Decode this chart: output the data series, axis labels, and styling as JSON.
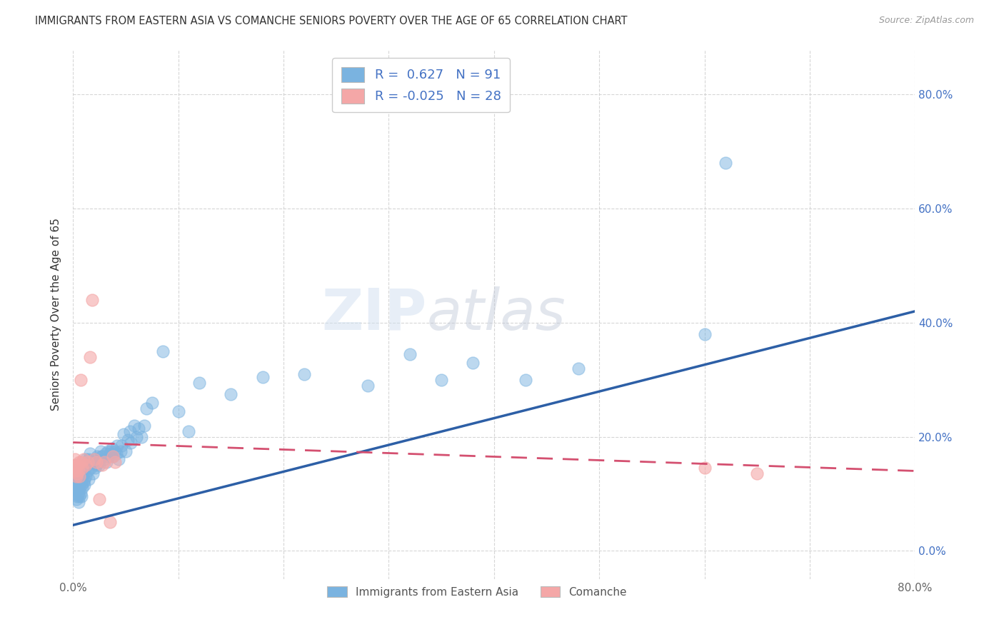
{
  "title": "IMMIGRANTS FROM EASTERN ASIA VS COMANCHE SENIORS POVERTY OVER THE AGE OF 65 CORRELATION CHART",
  "source": "Source: ZipAtlas.com",
  "ylabel": "Seniors Poverty Over the Age of 65",
  "xlim": [
    0.0,
    0.8
  ],
  "ylim": [
    -0.05,
    0.88
  ],
  "xtick_vals": [
    0.0,
    0.1,
    0.2,
    0.3,
    0.4,
    0.5,
    0.6,
    0.7,
    0.8
  ],
  "xtick_labels": [
    "0.0%",
    "",
    "",
    "",
    "",
    "",
    "",
    "",
    "80.0%"
  ],
  "ytick_vals": [
    0.0,
    0.2,
    0.4,
    0.6,
    0.8
  ],
  "ytick_labels": [
    "0.0%",
    "20.0%",
    "40.0%",
    "60.0%",
    "80.0%"
  ],
  "grid_color": "#cccccc",
  "background_color": "#ffffff",
  "blue_color": "#7ab3e0",
  "pink_color": "#f4a7a7",
  "blue_line_color": "#2d5fa6",
  "pink_line_color": "#d45070",
  "R_blue": 0.627,
  "N_blue": 91,
  "R_pink": -0.025,
  "N_pink": 28,
  "legend_label_blue": "Immigrants from Eastern Asia",
  "legend_label_pink": "Comanche",
  "watermark_zip": "ZIP",
  "watermark_atlas": "atlas",
  "blue_line_x": [
    0.0,
    0.8
  ],
  "blue_line_y": [
    0.045,
    0.42
  ],
  "pink_line_x": [
    0.0,
    0.8
  ],
  "pink_line_y": [
    0.19,
    0.14
  ],
  "blue_scatter_x": [
    0.001,
    0.001,
    0.002,
    0.002,
    0.002,
    0.003,
    0.003,
    0.003,
    0.004,
    0.004,
    0.004,
    0.005,
    0.005,
    0.005,
    0.005,
    0.006,
    0.006,
    0.006,
    0.007,
    0.007,
    0.007,
    0.008,
    0.008,
    0.008,
    0.009,
    0.009,
    0.01,
    0.01,
    0.011,
    0.011,
    0.012,
    0.012,
    0.013,
    0.014,
    0.015,
    0.015,
    0.016,
    0.017,
    0.018,
    0.019,
    0.02,
    0.021,
    0.022,
    0.023,
    0.024,
    0.025,
    0.026,
    0.027,
    0.028,
    0.03,
    0.031,
    0.032,
    0.033,
    0.034,
    0.035,
    0.036,
    0.037,
    0.038,
    0.04,
    0.041,
    0.042,
    0.043,
    0.045,
    0.046,
    0.048,
    0.05,
    0.052,
    0.054,
    0.055,
    0.058,
    0.06,
    0.062,
    0.065,
    0.068,
    0.07,
    0.075,
    0.085,
    0.1,
    0.11,
    0.12,
    0.15,
    0.18,
    0.22,
    0.28,
    0.32,
    0.35,
    0.38,
    0.43,
    0.48,
    0.6,
    0.62
  ],
  "blue_scatter_y": [
    0.12,
    0.1,
    0.13,
    0.11,
    0.14,
    0.105,
    0.125,
    0.09,
    0.115,
    0.13,
    0.095,
    0.12,
    0.1,
    0.115,
    0.085,
    0.125,
    0.11,
    0.095,
    0.12,
    0.13,
    0.1,
    0.115,
    0.125,
    0.095,
    0.13,
    0.11,
    0.12,
    0.14,
    0.115,
    0.125,
    0.16,
    0.13,
    0.15,
    0.14,
    0.16,
    0.125,
    0.17,
    0.145,
    0.155,
    0.135,
    0.16,
    0.145,
    0.15,
    0.165,
    0.155,
    0.15,
    0.175,
    0.165,
    0.165,
    0.16,
    0.17,
    0.155,
    0.175,
    0.165,
    0.17,
    0.175,
    0.18,
    0.165,
    0.175,
    0.17,
    0.185,
    0.16,
    0.175,
    0.185,
    0.205,
    0.175,
    0.195,
    0.21,
    0.19,
    0.22,
    0.2,
    0.215,
    0.2,
    0.22,
    0.25,
    0.26,
    0.35,
    0.245,
    0.21,
    0.295,
    0.275,
    0.305,
    0.31,
    0.29,
    0.345,
    0.3,
    0.33,
    0.3,
    0.32,
    0.38,
    0.68
  ],
  "pink_scatter_x": [
    0.001,
    0.002,
    0.002,
    0.003,
    0.003,
    0.004,
    0.004,
    0.005,
    0.006,
    0.006,
    0.007,
    0.008,
    0.009,
    0.01,
    0.012,
    0.014,
    0.016,
    0.018,
    0.02,
    0.022,
    0.025,
    0.028,
    0.03,
    0.035,
    0.038,
    0.04,
    0.6,
    0.65
  ],
  "pink_scatter_y": [
    0.15,
    0.14,
    0.16,
    0.13,
    0.145,
    0.135,
    0.15,
    0.14,
    0.155,
    0.13,
    0.3,
    0.155,
    0.145,
    0.16,
    0.15,
    0.155,
    0.34,
    0.44,
    0.16,
    0.155,
    0.09,
    0.15,
    0.155,
    0.05,
    0.165,
    0.155,
    0.145,
    0.135
  ]
}
